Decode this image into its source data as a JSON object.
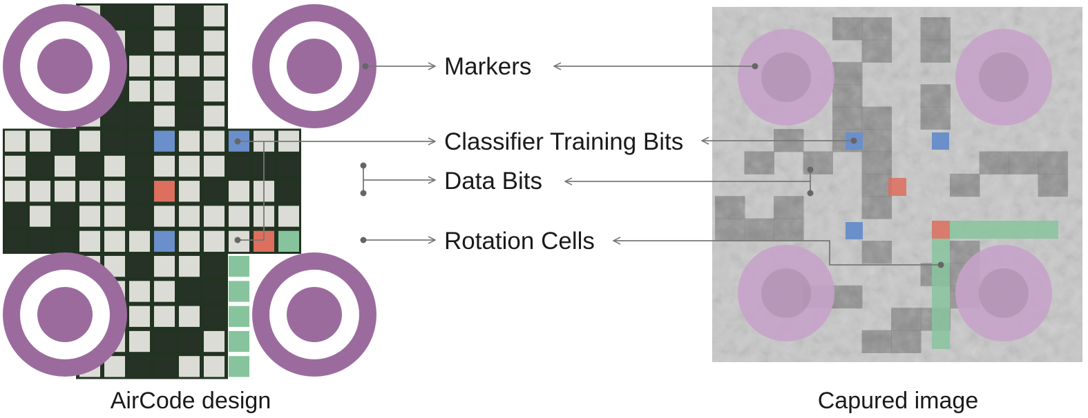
{
  "labels": {
    "markers": "Markers",
    "classifier_training_bits": "Classifier Training Bits",
    "data_bits": "Data Bits",
    "rotation_cells": "Rotation Cells"
  },
  "captions": {
    "left": "AirCode design",
    "right": "Capured image"
  },
  "colors": {
    "marker": "#9b6b9e",
    "grid_border": "#223322",
    "dark_cell": "#263226",
    "light_cell": "#dcdcd6",
    "classifier_bit": "#6b8fca",
    "data_bit": "#dc6f5d",
    "rotation_cell": "#87c49d",
    "leader_line": "#777777",
    "photo_background": "#c8c8c8",
    "photo_dark_cell": "#7e7e7e",
    "photo_marker": "#c7a3c9"
  },
  "aircode_grid": {
    "rows": [
      "XXX011010XXX",
      "XXX001010XXX",
      "XXX010000XXX",
      "XXX010010XXX",
      "XXX011010XXX",
      "001011b00b00",
      "010101000111",
      "000001r01001",
      "101001000000",
      "111000b000rg",
      "XXX001001gXX",
      "XXX000011gXX",
      "XXX110001gXX",
      "XXX000110gXX",
      "XXX001100gXX"
    ]
  }
}
